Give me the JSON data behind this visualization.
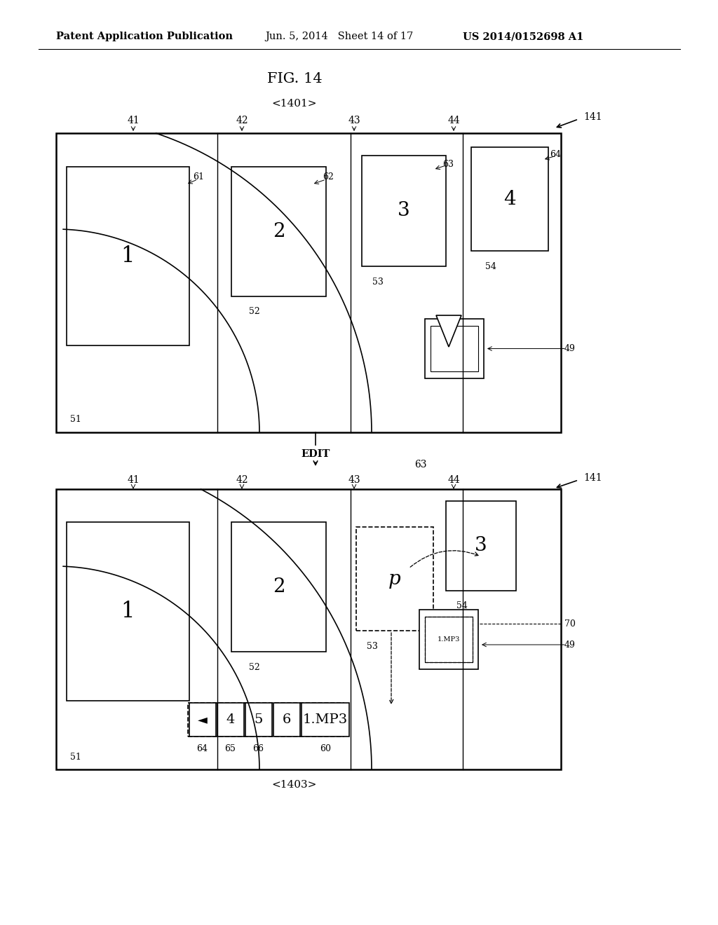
{
  "bg_color": "#ffffff",
  "header_text": "Patent Application Publication",
  "header_date": "Jun. 5, 2014   Sheet 14 of 17",
  "header_patent": "US 2014/0152698 A1",
  "fig_title": "FIG. 14",
  "top_label": "<1401>",
  "bottom_label": "<1403>",
  "edit_label": "EDIT"
}
